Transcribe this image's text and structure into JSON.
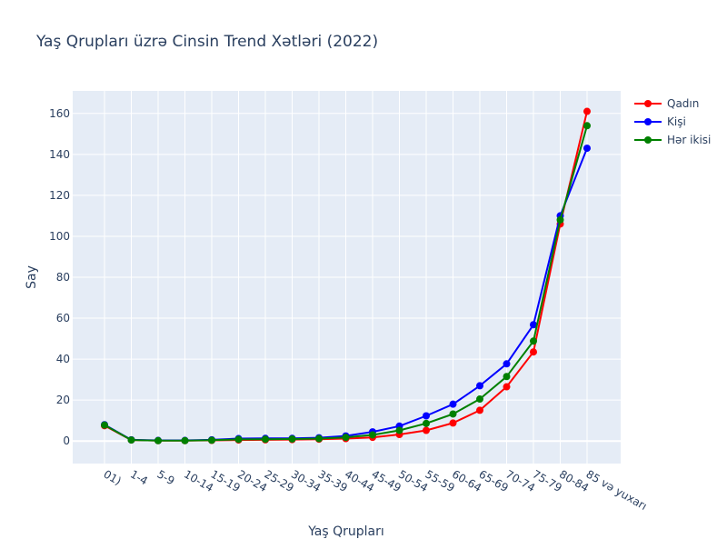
{
  "chart_data": {
    "type": "line",
    "title": "Yaş Qrupları üzrə Cinsin Trend Xətləri (2022)",
    "xlabel": "Yaş Qrupları",
    "ylabel": "Say",
    "ylim": [
      -11,
      171
    ],
    "yticks": [
      0,
      20,
      40,
      60,
      80,
      100,
      120,
      140,
      160
    ],
    "grid": true,
    "legend_position": "top-right",
    "categories": [
      "01)",
      "1-4",
      "5-9",
      "10-14",
      "15-19",
      "20-24",
      "25-29",
      "30-34",
      "35-39",
      "40-44",
      "45-49",
      "50-54",
      "55-59",
      "60-64",
      "65-69",
      "70-74",
      "75-79",
      "80-84",
      "85 və yuxarı"
    ],
    "series": [
      {
        "name": "Qadın",
        "color": "#ff0000",
        "values": [
          7.5,
          0.5,
          0.2,
          0.2,
          0.3,
          0.5,
          0.6,
          0.7,
          0.9,
          1.2,
          1.8,
          3.2,
          5.2,
          8.8,
          15.0,
          26.5,
          43.5,
          106.0,
          161.0
        ]
      },
      {
        "name": "Kişi",
        "color": "#0000ff",
        "values": [
          8.0,
          0.6,
          0.3,
          0.3,
          0.6,
          1.2,
          1.3,
          1.3,
          1.6,
          2.5,
          4.5,
          7.3,
          12.3,
          18.0,
          27.0,
          37.7,
          56.8,
          110.0,
          143.0
        ]
      },
      {
        "name": "Hər ikisi",
        "color": "#008000",
        "values": [
          7.8,
          0.5,
          0.2,
          0.2,
          0.4,
          0.8,
          0.9,
          1.0,
          1.2,
          1.8,
          3.0,
          5.2,
          8.6,
          13.2,
          20.5,
          31.5,
          48.8,
          108.0,
          154.0
        ]
      }
    ]
  }
}
